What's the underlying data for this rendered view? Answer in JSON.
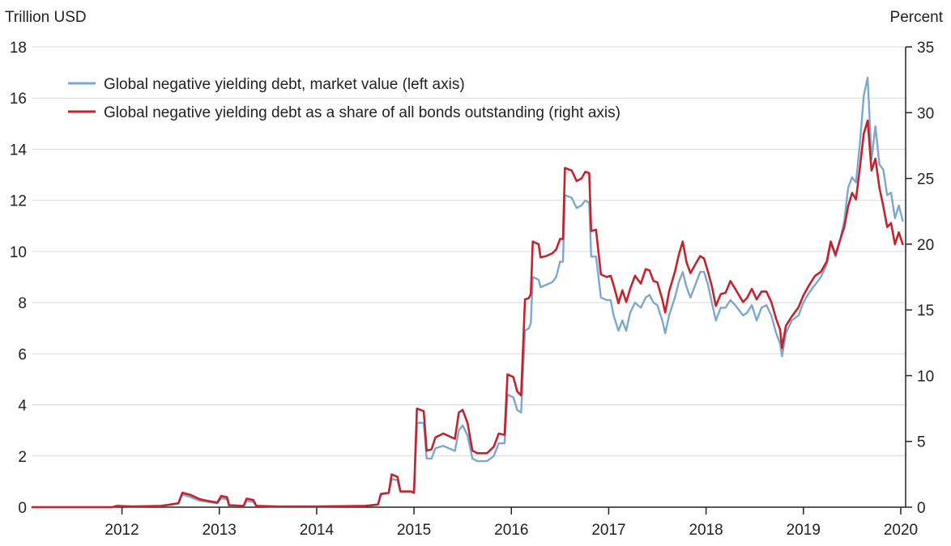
{
  "chart_data": {
    "type": "line",
    "left_axis_label": "Trillion USD",
    "right_axis_label": "Percent",
    "left_ylim": [
      0,
      18
    ],
    "right_ylim": [
      0,
      35
    ],
    "left_ticks": [
      0,
      2,
      4,
      6,
      8,
      10,
      12,
      14,
      16,
      18
    ],
    "right_ticks": [
      0,
      5,
      10,
      15,
      20,
      25,
      30,
      35
    ],
    "x_range": [
      2011.08,
      2020.05
    ],
    "x_ticks": [
      2012,
      2013,
      2014,
      2015,
      2016,
      2017,
      2018,
      2019,
      2020
    ],
    "grid": "horizontal",
    "legend_position": "top-left",
    "series": [
      {
        "name": "Global negative yielding debt, market value (left axis)",
        "axis": "left",
        "color": "#7ba7d1",
        "points": [
          [
            2011.08,
            0
          ],
          [
            2011.9,
            0
          ],
          [
            2011.95,
            0.05
          ],
          [
            2012.1,
            0.03
          ],
          [
            2012.4,
            0.04
          ],
          [
            2012.5,
            0.1
          ],
          [
            2012.58,
            0.15
          ],
          [
            2012.62,
            0.5
          ],
          [
            2012.7,
            0.4
          ],
          [
            2012.8,
            0.25
          ],
          [
            2012.9,
            0.2
          ],
          [
            2012.98,
            0.15
          ],
          [
            2013.02,
            0.35
          ],
          [
            2013.08,
            0.3
          ],
          [
            2013.1,
            0.05
          ],
          [
            2013.25,
            0.05
          ],
          [
            2013.28,
            0.25
          ],
          [
            2013.35,
            0.2
          ],
          [
            2013.38,
            0.05
          ],
          [
            2013.6,
            0.02
          ],
          [
            2014.0,
            0.03
          ],
          [
            2014.5,
            0.05
          ],
          [
            2014.63,
            0.1
          ],
          [
            2014.66,
            0.5
          ],
          [
            2014.74,
            0.55
          ],
          [
            2014.77,
            1.1
          ],
          [
            2014.83,
            1.05
          ],
          [
            2014.86,
            0.6
          ],
          [
            2014.97,
            0.6
          ],
          [
            2015.0,
            0.55
          ],
          [
            2015.03,
            3.3
          ],
          [
            2015.1,
            3.3
          ],
          [
            2015.13,
            1.9
          ],
          [
            2015.18,
            1.9
          ],
          [
            2015.22,
            2.3
          ],
          [
            2015.3,
            2.4
          ],
          [
            2015.36,
            2.3
          ],
          [
            2015.42,
            2.2
          ],
          [
            2015.46,
            3.0
          ],
          [
            2015.5,
            3.2
          ],
          [
            2015.55,
            2.8
          ],
          [
            2015.6,
            1.9
          ],
          [
            2015.65,
            1.8
          ],
          [
            2015.75,
            1.8
          ],
          [
            2015.82,
            2.0
          ],
          [
            2015.87,
            2.5
          ],
          [
            2015.93,
            2.5
          ],
          [
            2015.96,
            4.4
          ],
          [
            2016.02,
            4.3
          ],
          [
            2016.06,
            3.8
          ],
          [
            2016.1,
            3.7
          ],
          [
            2016.14,
            6.9
          ],
          [
            2016.18,
            7.0
          ],
          [
            2016.2,
            7.2
          ],
          [
            2016.22,
            9.0
          ],
          [
            2016.28,
            8.9
          ],
          [
            2016.3,
            8.6
          ],
          [
            2016.36,
            8.7
          ],
          [
            2016.42,
            8.8
          ],
          [
            2016.46,
            9.0
          ],
          [
            2016.5,
            9.6
          ],
          [
            2016.53,
            9.6
          ],
          [
            2016.55,
            12.2
          ],
          [
            2016.62,
            12.1
          ],
          [
            2016.67,
            11.7
          ],
          [
            2016.72,
            11.8
          ],
          [
            2016.76,
            12.0
          ],
          [
            2016.8,
            11.9
          ],
          [
            2016.82,
            9.8
          ],
          [
            2016.87,
            9.8
          ],
          [
            2016.92,
            8.2
          ],
          [
            2016.98,
            8.1
          ],
          [
            2017.02,
            8.1
          ],
          [
            2017.05,
            7.5
          ],
          [
            2017.1,
            6.9
          ],
          [
            2017.14,
            7.3
          ],
          [
            2017.18,
            6.9
          ],
          [
            2017.22,
            7.6
          ],
          [
            2017.27,
            8.0
          ],
          [
            2017.33,
            7.8
          ],
          [
            2017.38,
            8.2
          ],
          [
            2017.42,
            8.3
          ],
          [
            2017.46,
            8.0
          ],
          [
            2017.5,
            7.9
          ],
          [
            2017.55,
            7.3
          ],
          [
            2017.58,
            6.8
          ],
          [
            2017.62,
            7.5
          ],
          [
            2017.68,
            8.2
          ],
          [
            2017.72,
            8.8
          ],
          [
            2017.76,
            9.2
          ],
          [
            2017.8,
            8.6
          ],
          [
            2017.84,
            8.2
          ],
          [
            2017.9,
            8.8
          ],
          [
            2017.94,
            9.2
          ],
          [
            2017.98,
            9.2
          ],
          [
            2018.02,
            8.7
          ],
          [
            2018.06,
            8.0
          ],
          [
            2018.1,
            7.3
          ],
          [
            2018.15,
            7.8
          ],
          [
            2018.2,
            7.8
          ],
          [
            2018.25,
            8.1
          ],
          [
            2018.3,
            7.9
          ],
          [
            2018.34,
            7.7
          ],
          [
            2018.38,
            7.5
          ],
          [
            2018.42,
            7.6
          ],
          [
            2018.47,
            7.9
          ],
          [
            2018.52,
            7.3
          ],
          [
            2018.57,
            7.8
          ],
          [
            2018.62,
            7.9
          ],
          [
            2018.67,
            7.5
          ],
          [
            2018.72,
            6.8
          ],
          [
            2018.76,
            6.4
          ],
          [
            2018.78,
            5.9
          ],
          [
            2018.82,
            6.8
          ],
          [
            2018.88,
            7.3
          ],
          [
            2018.95,
            7.5
          ],
          [
            2019.0,
            8.0
          ],
          [
            2019.06,
            8.4
          ],
          [
            2019.12,
            8.7
          ],
          [
            2019.18,
            9.0
          ],
          [
            2019.24,
            9.5
          ],
          [
            2019.28,
            10.3
          ],
          [
            2019.33,
            9.8
          ],
          [
            2019.38,
            10.5
          ],
          [
            2019.42,
            11.2
          ],
          [
            2019.46,
            12.5
          ],
          [
            2019.5,
            12.9
          ],
          [
            2019.54,
            12.7
          ],
          [
            2019.58,
            14.2
          ],
          [
            2019.62,
            16.1
          ],
          [
            2019.66,
            16.8
          ],
          [
            2019.7,
            13.6
          ],
          [
            2019.74,
            14.9
          ],
          [
            2019.78,
            13.4
          ],
          [
            2019.82,
            13.2
          ],
          [
            2019.86,
            12.2
          ],
          [
            2019.9,
            12.3
          ],
          [
            2019.94,
            11.3
          ],
          [
            2019.98,
            11.8
          ],
          [
            2020.02,
            11.2
          ]
        ]
      },
      {
        "name": "Global negative yielding debt as a share of all bonds outstanding (right axis)",
        "axis": "right",
        "color": "#c3232b",
        "points": [
          [
            2011.08,
            0
          ],
          [
            2011.9,
            0
          ],
          [
            2011.95,
            0.1
          ],
          [
            2012.1,
            0.05
          ],
          [
            2012.4,
            0.1
          ],
          [
            2012.5,
            0.2
          ],
          [
            2012.58,
            0.3
          ],
          [
            2012.62,
            1.1
          ],
          [
            2012.7,
            0.95
          ],
          [
            2012.8,
            0.6
          ],
          [
            2012.9,
            0.45
          ],
          [
            2012.98,
            0.35
          ],
          [
            2013.02,
            0.85
          ],
          [
            2013.08,
            0.75
          ],
          [
            2013.1,
            0.15
          ],
          [
            2013.25,
            0.1
          ],
          [
            2013.28,
            0.65
          ],
          [
            2013.35,
            0.55
          ],
          [
            2013.38,
            0.1
          ],
          [
            2013.6,
            0.05
          ],
          [
            2014.0,
            0.05
          ],
          [
            2014.5,
            0.1
          ],
          [
            2014.63,
            0.2
          ],
          [
            2014.66,
            1.0
          ],
          [
            2014.74,
            1.1
          ],
          [
            2014.77,
            2.5
          ],
          [
            2014.83,
            2.3
          ],
          [
            2014.86,
            1.2
          ],
          [
            2014.97,
            1.2
          ],
          [
            2015.0,
            1.1
          ],
          [
            2015.03,
            7.5
          ],
          [
            2015.1,
            7.3
          ],
          [
            2015.13,
            4.3
          ],
          [
            2015.18,
            4.4
          ],
          [
            2015.22,
            5.3
          ],
          [
            2015.3,
            5.6
          ],
          [
            2015.36,
            5.4
          ],
          [
            2015.42,
            5.2
          ],
          [
            2015.46,
            7.2
          ],
          [
            2015.5,
            7.4
          ],
          [
            2015.55,
            6.4
          ],
          [
            2015.6,
            4.3
          ],
          [
            2015.65,
            4.1
          ],
          [
            2015.75,
            4.1
          ],
          [
            2015.82,
            4.6
          ],
          [
            2015.87,
            5.6
          ],
          [
            2015.93,
            5.5
          ],
          [
            2015.96,
            10.1
          ],
          [
            2016.02,
            9.9
          ],
          [
            2016.06,
            8.8
          ],
          [
            2016.1,
            8.5
          ],
          [
            2016.14,
            15.8
          ],
          [
            2016.18,
            15.9
          ],
          [
            2016.2,
            16.2
          ],
          [
            2016.22,
            20.2
          ],
          [
            2016.28,
            20.0
          ],
          [
            2016.3,
            19.0
          ],
          [
            2016.36,
            19.1
          ],
          [
            2016.42,
            19.3
          ],
          [
            2016.46,
            19.6
          ],
          [
            2016.5,
            20.4
          ],
          [
            2016.53,
            20.4
          ],
          [
            2016.55,
            25.8
          ],
          [
            2016.62,
            25.6
          ],
          [
            2016.67,
            24.8
          ],
          [
            2016.72,
            25.0
          ],
          [
            2016.76,
            25.5
          ],
          [
            2016.8,
            25.4
          ],
          [
            2016.82,
            21.0
          ],
          [
            2016.87,
            21.1
          ],
          [
            2016.92,
            17.7
          ],
          [
            2016.98,
            17.5
          ],
          [
            2017.02,
            17.6
          ],
          [
            2017.05,
            16.9
          ],
          [
            2017.1,
            15.5
          ],
          [
            2017.14,
            16.5
          ],
          [
            2017.18,
            15.6
          ],
          [
            2017.22,
            16.6
          ],
          [
            2017.27,
            17.6
          ],
          [
            2017.33,
            17.0
          ],
          [
            2017.38,
            18.1
          ],
          [
            2017.42,
            18.0
          ],
          [
            2017.46,
            17.2
          ],
          [
            2017.5,
            17.1
          ],
          [
            2017.55,
            15.8
          ],
          [
            2017.58,
            14.8
          ],
          [
            2017.62,
            16.4
          ],
          [
            2017.68,
            17.9
          ],
          [
            2017.72,
            19.2
          ],
          [
            2017.76,
            20.2
          ],
          [
            2017.8,
            18.6
          ],
          [
            2017.84,
            17.8
          ],
          [
            2017.9,
            18.6
          ],
          [
            2017.94,
            19.1
          ],
          [
            2017.98,
            18.9
          ],
          [
            2018.02,
            17.9
          ],
          [
            2018.06,
            16.8
          ],
          [
            2018.1,
            15.3
          ],
          [
            2018.15,
            16.2
          ],
          [
            2018.2,
            16.3
          ],
          [
            2018.25,
            17.2
          ],
          [
            2018.3,
            16.6
          ],
          [
            2018.34,
            16.1
          ],
          [
            2018.38,
            15.6
          ],
          [
            2018.42,
            15.9
          ],
          [
            2018.47,
            16.6
          ],
          [
            2018.52,
            15.8
          ],
          [
            2018.57,
            16.4
          ],
          [
            2018.62,
            16.4
          ],
          [
            2018.67,
            15.6
          ],
          [
            2018.72,
            14.3
          ],
          [
            2018.76,
            13.5
          ],
          [
            2018.78,
            12.1
          ],
          [
            2018.82,
            13.8
          ],
          [
            2018.88,
            14.5
          ],
          [
            2018.95,
            15.2
          ],
          [
            2019.0,
            16.1
          ],
          [
            2019.06,
            16.9
          ],
          [
            2019.12,
            17.6
          ],
          [
            2019.18,
            17.9
          ],
          [
            2019.24,
            18.7
          ],
          [
            2019.28,
            20.2
          ],
          [
            2019.33,
            19.2
          ],
          [
            2019.38,
            20.4
          ],
          [
            2019.42,
            21.3
          ],
          [
            2019.46,
            22.9
          ],
          [
            2019.5,
            23.9
          ],
          [
            2019.54,
            23.4
          ],
          [
            2019.58,
            25.8
          ],
          [
            2019.62,
            28.4
          ],
          [
            2019.66,
            29.4
          ],
          [
            2019.7,
            25.6
          ],
          [
            2019.74,
            26.5
          ],
          [
            2019.78,
            24.3
          ],
          [
            2019.82,
            22.9
          ],
          [
            2019.86,
            21.3
          ],
          [
            2019.9,
            21.6
          ],
          [
            2019.94,
            20.0
          ],
          [
            2019.98,
            20.9
          ],
          [
            2020.02,
            20.0
          ]
        ]
      }
    ]
  }
}
